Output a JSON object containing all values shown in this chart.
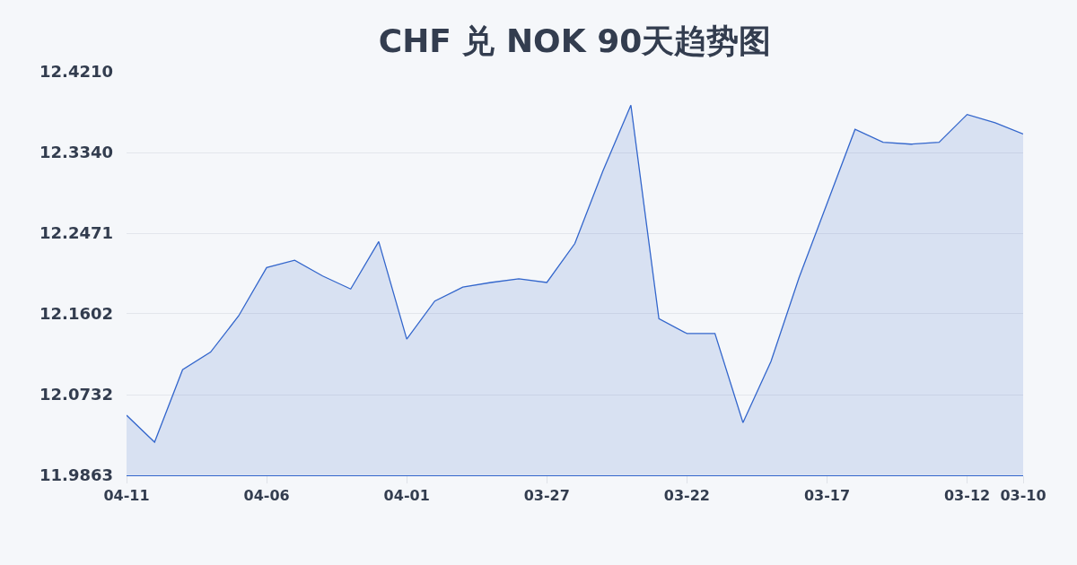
{
  "chart_data": {
    "type": "area",
    "title": "CHF 兑 NOK 90天趋势图",
    "categories": [
      "04-11",
      null,
      null,
      null,
      null,
      "04-06",
      null,
      null,
      null,
      null,
      "04-01",
      null,
      null,
      null,
      null,
      "03-27",
      null,
      null,
      null,
      null,
      "03-22",
      null,
      null,
      null,
      null,
      "03-17",
      null,
      null,
      null,
      null,
      "03-12",
      null,
      "03-10"
    ],
    "series": [
      {
        "color": "#3366cc",
        "values": [
          12.051,
          12.022,
          12.1,
          12.119,
          12.158,
          12.21,
          12.218,
          12.201,
          12.187,
          12.238,
          12.133,
          12.174,
          12.189,
          12.194,
          12.198,
          12.194,
          12.236,
          12.314,
          12.385,
          12.155,
          12.139,
          12.139,
          12.043,
          12.109,
          12.199,
          12.279,
          12.359,
          12.345,
          12.343,
          12.345,
          12.375,
          12.366,
          12.354
        ]
      }
    ],
    "ylim": [
      11.9863,
      12.421
    ],
    "yticks": [
      11.9863,
      12.0732,
      12.1602,
      12.2471,
      {
        "value": 12.334,
        "label": "12.3340"
      },
      {
        "value": 12.421,
        "label": "12.4210"
      }
    ],
    "grid": "y"
  }
}
